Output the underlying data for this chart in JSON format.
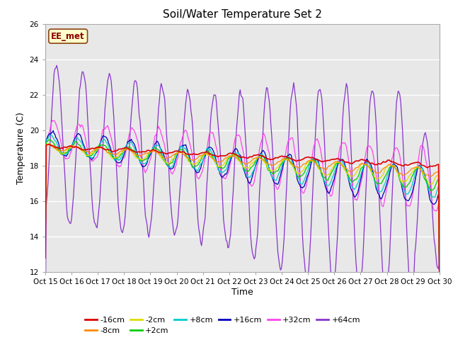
{
  "title": "Soil/Water Temperature Set 2",
  "xlabel": "Time",
  "ylabel": "Temperature (C)",
  "ylim": [
    12,
    26
  ],
  "yticks": [
    12,
    14,
    16,
    18,
    20,
    22,
    24,
    26
  ],
  "xlim": [
    0,
    449
  ],
  "fig_bg": "#ffffff",
  "plot_bg": "#e8e8e8",
  "annotation_text": "EE_met",
  "annotation_bg": "#ffffcc",
  "annotation_border": "#8B4513",
  "series_colors": {
    "-16cm": "#dd0000",
    "-8cm": "#ff8800",
    "-2cm": "#dddd00",
    "+2cm": "#00cc00",
    "+8cm": "#00cccc",
    "+16cm": "#0000bb",
    "+32cm": "#ff44ee",
    "+64cm": "#8833cc"
  },
  "n_points": 450,
  "period": 30
}
